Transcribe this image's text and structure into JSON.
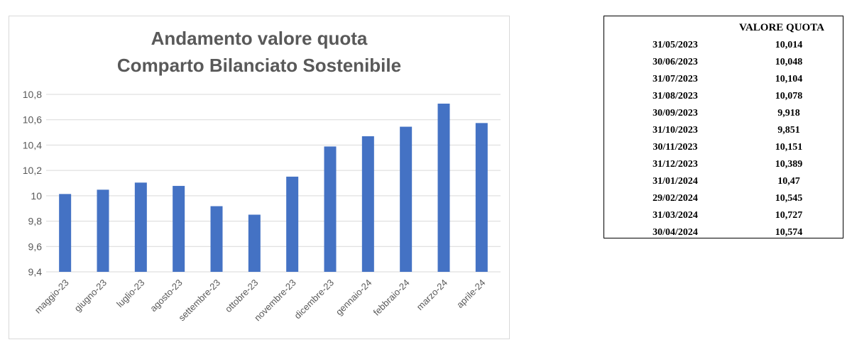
{
  "chart_data": {
    "type": "bar",
    "title": [
      "Andamento valore quota",
      "Comparto Bilanciato Sostenibile"
    ],
    "categories": [
      "maggio-23",
      "giugno-23",
      "luglio-23",
      "agosto-23",
      "settembre-23",
      "ottobre-23",
      "novembre-23",
      "dicembre-23",
      "gennaio-24",
      "febbraio-24",
      "marzo-24",
      "aprile-24"
    ],
    "values": [
      10.014,
      10.048,
      10.104,
      10.078,
      9.918,
      9.851,
      10.151,
      10.389,
      10.47,
      10.545,
      10.727,
      10.574
    ],
    "ylim": [
      9.4,
      10.8
    ],
    "yticks": [
      "9,4",
      "9,6",
      "9,8",
      "10",
      "10,2",
      "10,4",
      "10,6",
      "10,8"
    ],
    "yticks_values": [
      9.4,
      9.6,
      9.8,
      10.0,
      10.2,
      10.4,
      10.6,
      10.8
    ],
    "xlabel": "",
    "ylabel": "",
    "grid": true,
    "bar_color": "#4472c4"
  },
  "table": {
    "header": "VALORE QUOTA",
    "rows": [
      {
        "date": "31/05/2023",
        "value": "10,014"
      },
      {
        "date": "30/06/2023",
        "value": "10,048"
      },
      {
        "date": "31/07/2023",
        "value": "10,104"
      },
      {
        "date": "31/08/2023",
        "value": "10,078"
      },
      {
        "date": "30/09/2023",
        "value": "9,918"
      },
      {
        "date": "31/10/2023",
        "value": "9,851"
      },
      {
        "date": "30/11/2023",
        "value": "10,151"
      },
      {
        "date": "31/12/2023",
        "value": "10,389"
      },
      {
        "date": "31/01/2024",
        "value": "10,47"
      },
      {
        "date": "29/02/2024",
        "value": "10,545"
      },
      {
        "date": "31/03/2024",
        "value": "10,727"
      },
      {
        "date": "30/04/2024",
        "value": "10,574"
      }
    ]
  }
}
